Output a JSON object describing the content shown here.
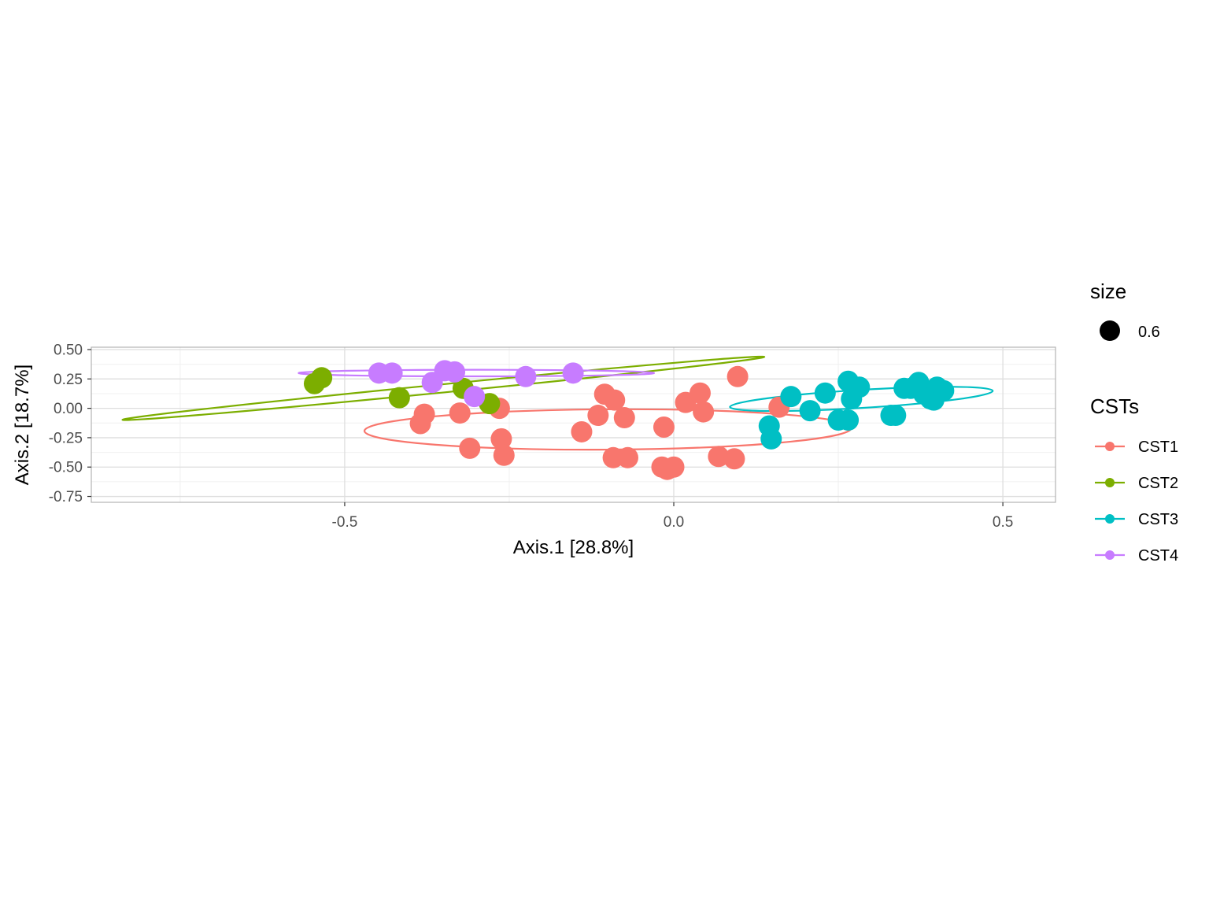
{
  "chart_data": {
    "type": "scatter",
    "xlabel": "Axis.1   [28.8%]",
    "ylabel": "Axis.2   [18.7%]",
    "xlim": [
      -0.885,
      0.58
    ],
    "ylim": [
      -0.8,
      0.52
    ],
    "x_ticks": [
      -0.5,
      0.0,
      0.5
    ],
    "x_tick_labels": [
      "-0.5",
      "0.0",
      "0.5"
    ],
    "y_ticks": [
      0.5,
      0.25,
      0.0,
      -0.25,
      -0.5,
      -0.75
    ],
    "y_tick_labels": [
      "0.50",
      "0.25",
      "0.00",
      "-0.25",
      "-0.50",
      "-0.75"
    ],
    "grid": true,
    "legend_position": "right",
    "legend_size": {
      "title": "size",
      "label": "0.6"
    },
    "legend_color": {
      "title": "CSTs"
    },
    "series": [
      {
        "name": "CST1",
        "color": "#F8766D",
        "points": [
          [
            -0.379,
            -0.05
          ],
          [
            -0.385,
            -0.13
          ],
          [
            -0.325,
            -0.04
          ],
          [
            -0.31,
            -0.34
          ],
          [
            -0.265,
            0.0
          ],
          [
            -0.262,
            -0.26
          ],
          [
            -0.258,
            -0.4
          ],
          [
            -0.14,
            -0.2
          ],
          [
            -0.115,
            -0.06
          ],
          [
            -0.105,
            0.12
          ],
          [
            -0.09,
            0.07
          ],
          [
            -0.092,
            -0.42
          ],
          [
            -0.075,
            -0.08
          ],
          [
            -0.07,
            -0.42
          ],
          [
            -0.018,
            -0.5
          ],
          [
            -0.015,
            -0.16
          ],
          [
            -0.01,
            -0.52
          ],
          [
            0.0,
            -0.5
          ],
          [
            0.018,
            0.05
          ],
          [
            0.04,
            0.13
          ],
          [
            0.045,
            -0.03
          ],
          [
            0.068,
            -0.41
          ],
          [
            0.092,
            -0.43
          ],
          [
            0.097,
            0.27
          ],
          [
            0.16,
            0.01
          ]
        ],
        "ellipse": {
          "center": [
            -0.1,
            -0.18
          ],
          "semi_axes": [
            0.37,
            0.49
          ],
          "angle_deg": -1
        }
      },
      {
        "name": "CST2",
        "color": "#7CAE00",
        "points": [
          [
            -0.546,
            0.21
          ],
          [
            -0.535,
            0.26
          ],
          [
            -0.417,
            0.09
          ],
          [
            -0.32,
            0.17
          ],
          [
            -0.28,
            0.04
          ]
        ],
        "ellipse": {
          "center": [
            -0.35,
            0.17
          ],
          "semi_axes": [
            0.49,
            0.1
          ],
          "angle_deg": -16
        }
      },
      {
        "name": "CST3",
        "color": "#00BFC4",
        "points": [
          [
            0.145,
            -0.15
          ],
          [
            0.148,
            -0.26
          ],
          [
            0.178,
            0.1
          ],
          [
            0.207,
            -0.02
          ],
          [
            0.23,
            0.13
          ],
          [
            0.25,
            -0.1
          ],
          [
            0.265,
            -0.1
          ],
          [
            0.265,
            0.23
          ],
          [
            0.27,
            0.08
          ],
          [
            0.282,
            0.18
          ],
          [
            0.33,
            -0.06
          ],
          [
            0.337,
            -0.06
          ],
          [
            0.35,
            0.17
          ],
          [
            0.36,
            0.17
          ],
          [
            0.372,
            0.22
          ],
          [
            0.38,
            0.12
          ],
          [
            0.39,
            0.08
          ],
          [
            0.395,
            0.07
          ],
          [
            0.4,
            0.18
          ],
          [
            0.41,
            0.15
          ]
        ],
        "ellipse": {
          "center": [
            0.285,
            0.08
          ],
          "semi_axes": [
            0.2,
            0.22
          ],
          "angle_deg": -10
        }
      },
      {
        "name": "CST4",
        "color": "#C77CFF",
        "points": [
          [
            -0.448,
            0.3
          ],
          [
            -0.428,
            0.3
          ],
          [
            -0.367,
            0.22
          ],
          [
            -0.348,
            0.32
          ],
          [
            -0.333,
            0.31
          ],
          [
            -0.303,
            0.1
          ],
          [
            -0.225,
            0.27
          ],
          [
            -0.153,
            0.3
          ]
        ],
        "ellipse": {
          "center": [
            -0.3,
            0.3
          ],
          "semi_axes": [
            0.27,
            0.08
          ],
          "angle_deg": 0
        }
      }
    ]
  }
}
